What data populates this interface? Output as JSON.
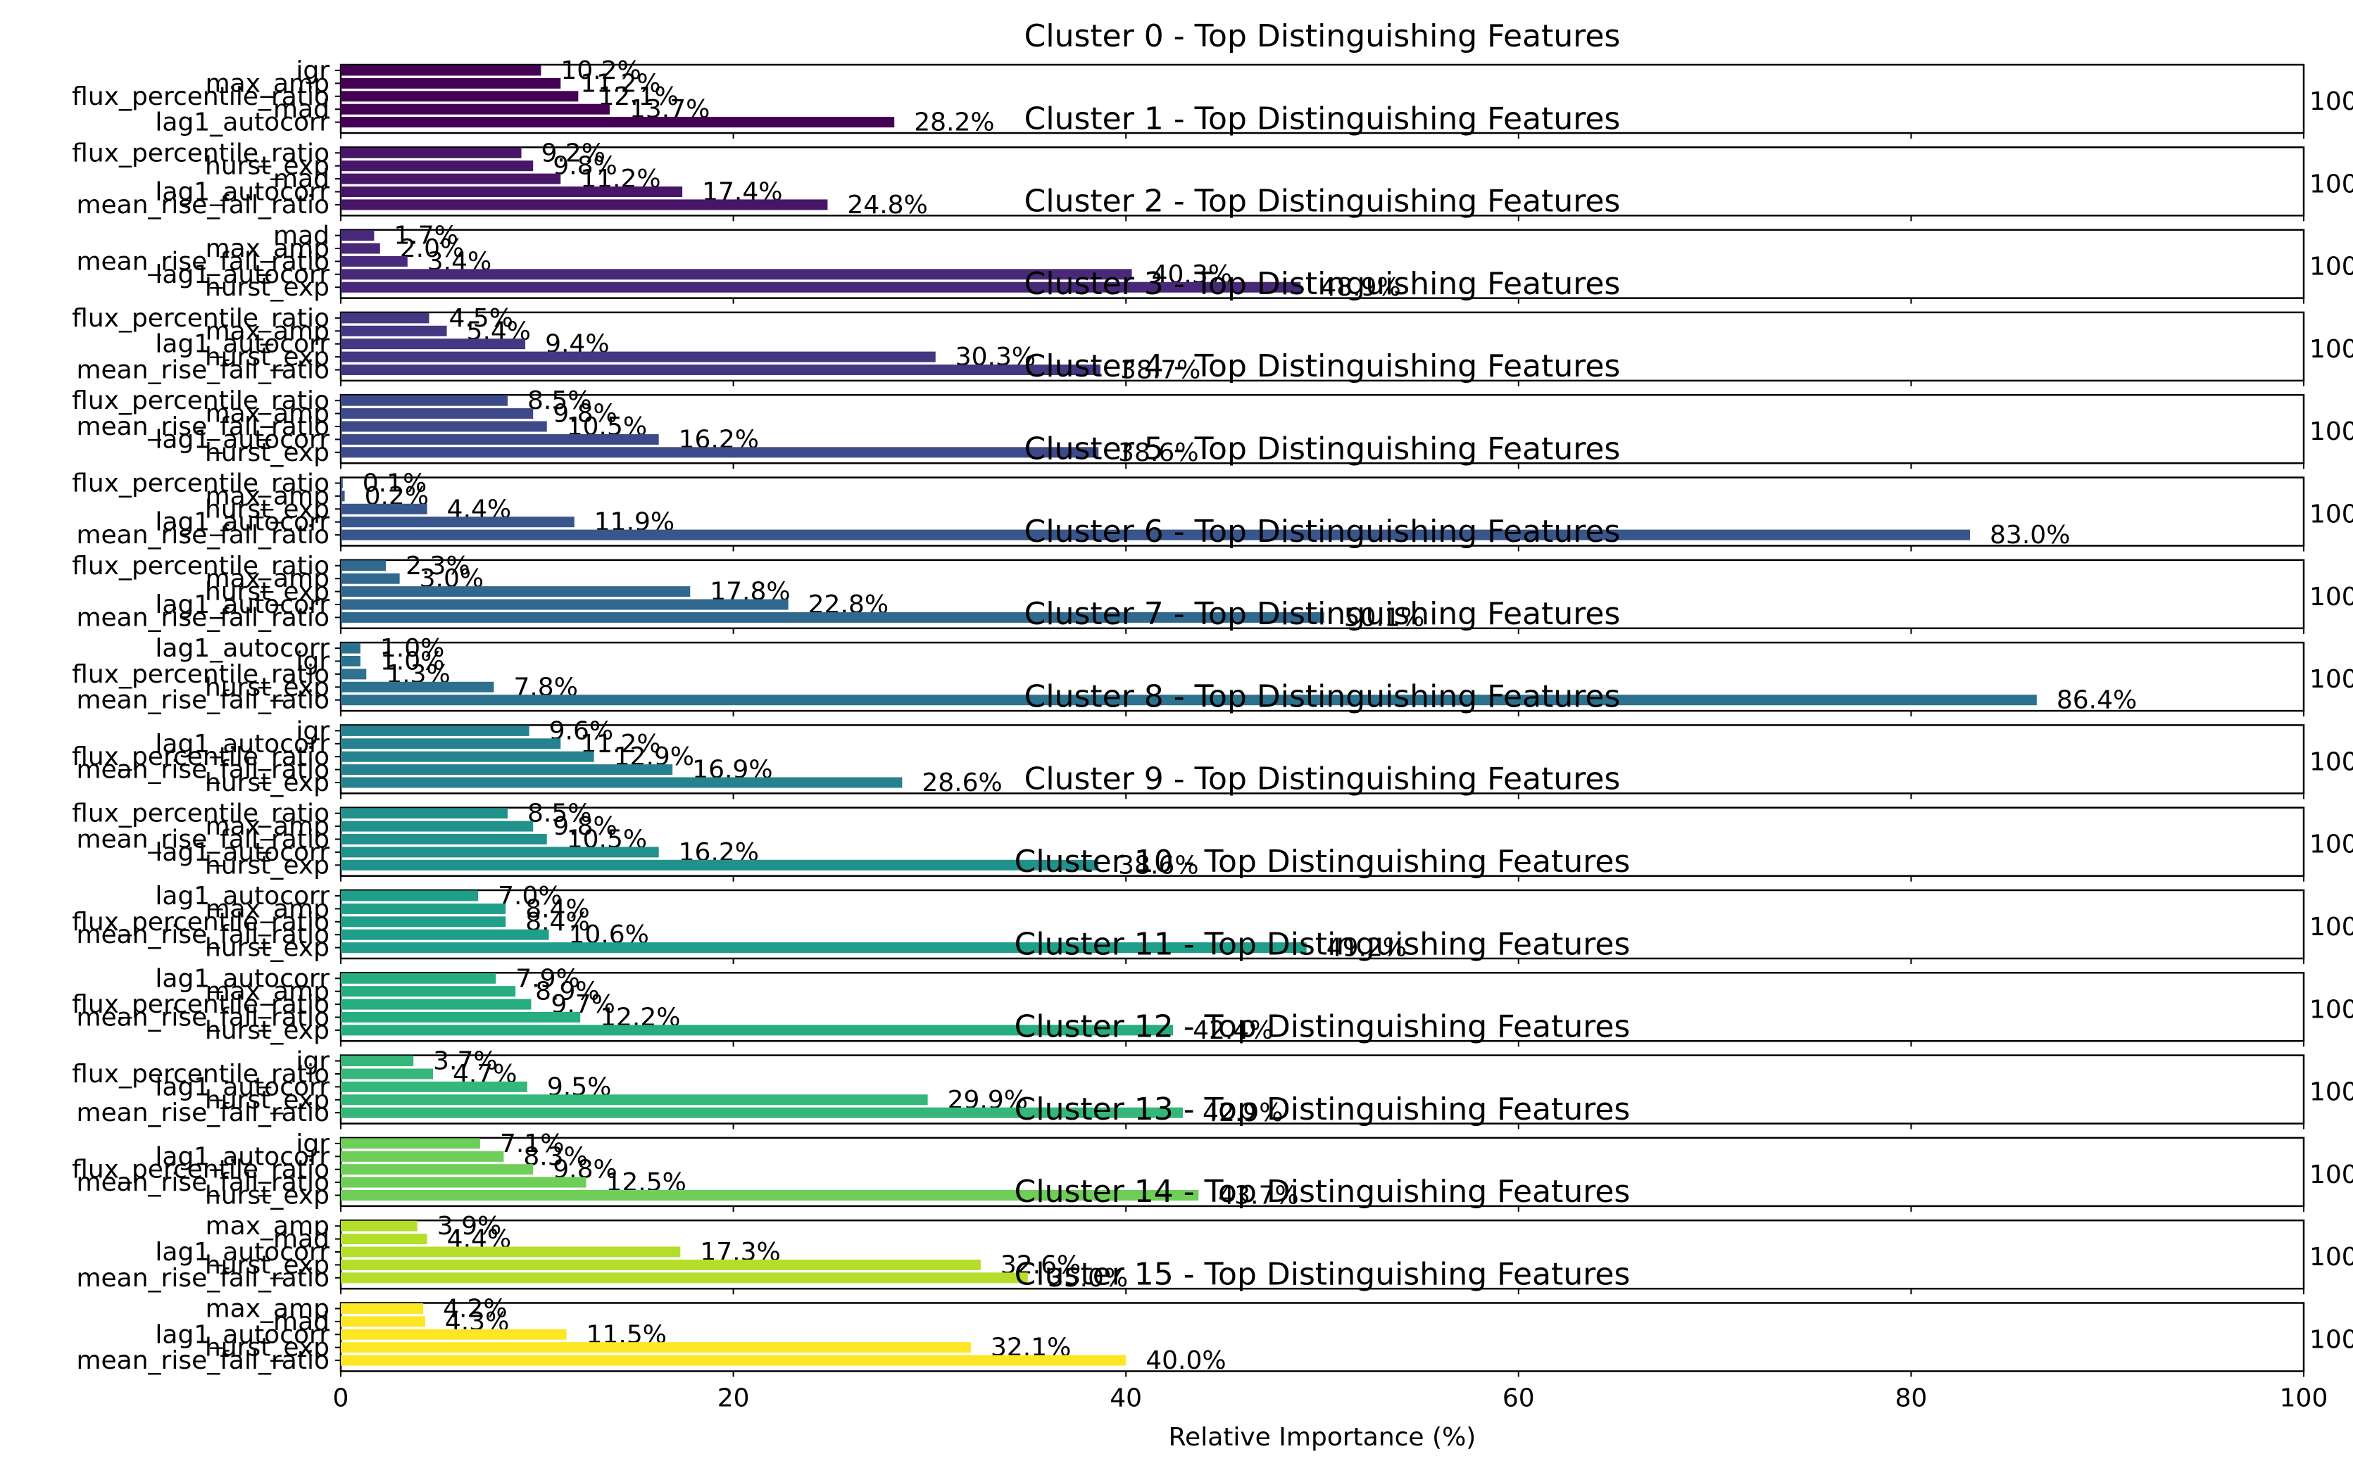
{
  "chart_data": {
    "type": "bar",
    "orientation": "horizontal",
    "xlabel": "Relative Importance (%)",
    "xlim": [
      0,
      100
    ],
    "xticks": [
      "0",
      "20",
      "40",
      "60",
      "80",
      "100"
    ],
    "colormap": "viridis",
    "panels": [
      {
        "title": "Cluster 0 - Top Distinguishing Features",
        "color": "#440154",
        "features": [
          "igr",
          "max_amp",
          "flux_percentile_ratio",
          "mad",
          "lag1_autocorr"
        ],
        "values": [
          10.2,
          11.2,
          12.1,
          13.7,
          28.2
        ],
        "labels": [
          "10.2%",
          "11.2%",
          "12.1%",
          "13.7%",
          "28.2%"
        ]
      },
      {
        "title": "Cluster 1 - Top Distinguishing Features",
        "color": "#481668",
        "features": [
          "flux_percentile_ratio",
          "hurst_exp",
          "mad",
          "lag1_autocorr",
          "mean_rise_fall_ratio"
        ],
        "values": [
          9.2,
          9.8,
          11.2,
          17.4,
          24.8
        ],
        "labels": [
          "9.2%",
          "9.8%",
          "11.2%",
          "17.4%",
          "24.8%"
        ]
      },
      {
        "title": "Cluster 2 - Top Distinguishing Features",
        "color": "#482878",
        "features": [
          "mad",
          "max_amp",
          "mean_rise_fall_ratio",
          "lag1_autocorr",
          "hurst_exp"
        ],
        "values": [
          1.7,
          2.0,
          3.4,
          40.3,
          48.9
        ],
        "labels": [
          "1.7%",
          "2.0%",
          "3.4%",
          "40.3%",
          "48.9%"
        ]
      },
      {
        "title": "Cluster 3 - Top Distinguishing Features",
        "color": "#453781",
        "features": [
          "flux_percentile_ratio",
          "max_amp",
          "lag1_autocorr",
          "hurst_exp",
          "mean_rise_fall_ratio"
        ],
        "values": [
          4.5,
          5.4,
          9.4,
          30.3,
          38.7
        ],
        "labels": [
          "4.5%",
          "5.4%",
          "9.4%",
          "30.3%",
          "38.7%"
        ]
      },
      {
        "title": "Cluster 4 - Top Distinguishing Features",
        "color": "#3e4989",
        "features": [
          "flux_percentile_ratio",
          "max_amp",
          "mean_rise_fall_ratio",
          "lag1_autocorr",
          "hurst_exp"
        ],
        "values": [
          8.5,
          9.8,
          10.5,
          16.2,
          38.6
        ],
        "labels": [
          "8.5%",
          "9.8%",
          "10.5%",
          "16.2%",
          "38.6%"
        ]
      },
      {
        "title": "Cluster 5 - Top Distinguishing Features",
        "color": "#39568c",
        "features": [
          "flux_percentile_ratio",
          "max_amp",
          "hurst_exp",
          "lag1_autocorr",
          "mean_rise_fall_ratio"
        ],
        "values": [
          0.1,
          0.2,
          4.4,
          11.9,
          83.0
        ],
        "labels": [
          "0.1%",
          "0.2%",
          "4.4%",
          "11.9%",
          "83.0%"
        ]
      },
      {
        "title": "Cluster 6 - Top Distinguishing Features",
        "color": "#31688e",
        "features": [
          "flux_percentile_ratio",
          "max_amp",
          "hurst_exp",
          "lag1_autocorr",
          "mean_rise_fall_ratio"
        ],
        "values": [
          2.3,
          3.0,
          17.8,
          22.8,
          50.1
        ],
        "labels": [
          "2.3%",
          "3.0%",
          "17.8%",
          "22.8%",
          "50.1%"
        ]
      },
      {
        "title": "Cluster 7 - Top Distinguishing Features",
        "color": "#2c728e",
        "features": [
          "lag1_autocorr",
          "igr",
          "flux_percentile_ratio",
          "hurst_exp",
          "mean_rise_fall_ratio"
        ],
        "values": [
          1.0,
          1.0,
          1.3,
          7.8,
          86.4
        ],
        "labels": [
          "1.0%",
          "1.0%",
          "1.3%",
          "7.8%",
          "86.4%"
        ]
      },
      {
        "title": "Cluster 8 - Top Distinguishing Features",
        "color": "#26828e",
        "features": [
          "igr",
          "lag1_autocorr",
          "flux_percentile_ratio",
          "mean_rise_fall_ratio",
          "hurst_exp"
        ],
        "values": [
          9.6,
          11.2,
          12.9,
          16.9,
          28.6
        ],
        "labels": [
          "9.6%",
          "11.2%",
          "12.9%",
          "16.9%",
          "28.6%"
        ]
      },
      {
        "title": "Cluster 9 - Top Distinguishing Features",
        "color": "#21918c",
        "features": [
          "flux_percentile_ratio",
          "max_amp",
          "mean_rise_fall_ratio",
          "lag1_autocorr",
          "hurst_exp"
        ],
        "values": [
          8.5,
          9.8,
          10.5,
          16.2,
          38.6
        ],
        "labels": [
          "8.5%",
          "9.8%",
          "10.5%",
          "16.2%",
          "38.6%"
        ]
      },
      {
        "title": "Cluster 10 - Top Distinguishing Features",
        "color": "#1f9e89",
        "features": [
          "lag1_autocorr",
          "max_amp",
          "flux_percentile_ratio",
          "mean_rise_fall_ratio",
          "hurst_exp"
        ],
        "values": [
          7.0,
          8.4,
          8.4,
          10.6,
          49.2
        ],
        "labels": [
          "7.0%",
          "8.4%",
          "8.4%",
          "10.6%",
          "49.2%"
        ]
      },
      {
        "title": "Cluster 11 - Top Distinguishing Features",
        "color": "#26ad81",
        "features": [
          "lag1_autocorr",
          "max_amp",
          "flux_percentile_ratio",
          "mean_rise_fall_ratio",
          "hurst_exp"
        ],
        "values": [
          7.9,
          8.9,
          9.7,
          12.2,
          42.4
        ],
        "labels": [
          "7.9%",
          "8.9%",
          "9.7%",
          "12.2%",
          "42.4%"
        ]
      },
      {
        "title": "Cluster 12 - Top Distinguishing Features",
        "color": "#35b779",
        "features": [
          "igr",
          "flux_percentile_ratio",
          "lag1_autocorr",
          "hurst_exp",
          "mean_rise_fall_ratio"
        ],
        "values": [
          3.7,
          4.7,
          9.5,
          29.9,
          42.9
        ],
        "labels": [
          "3.7%",
          "4.7%",
          "9.5%",
          "29.9%",
          "42.9%"
        ]
      },
      {
        "title": "Cluster 13 - Top Distinguishing Features",
        "color": "#6ece58",
        "features": [
          "igr",
          "lag1_autocorr",
          "flux_percentile_ratio",
          "mean_rise_fall_ratio",
          "hurst_exp"
        ],
        "values": [
          7.1,
          8.3,
          9.8,
          12.5,
          43.7
        ],
        "labels": [
          "7.1%",
          "8.3%",
          "9.8%",
          "12.5%",
          "43.7%"
        ]
      },
      {
        "title": "Cluster 14 - Top Distinguishing Features",
        "color": "#b5de2b",
        "features": [
          "max_amp",
          "mad",
          "lag1_autocorr",
          "hurst_exp",
          "mean_rise_fall_ratio"
        ],
        "values": [
          3.9,
          4.4,
          17.3,
          32.6,
          35.0
        ],
        "labels": [
          "3.9%",
          "4.4%",
          "17.3%",
          "32.6%",
          "35.0%"
        ]
      },
      {
        "title": "Cluster 15 - Top Distinguishing Features",
        "color": "#fde725",
        "features": [
          "max_amp",
          "mad",
          "lag1_autocorr",
          "hurst_exp",
          "mean_rise_fall_ratio"
        ],
        "values": [
          4.2,
          4.3,
          11.5,
          32.1,
          40.0
        ],
        "labels": [
          "4.2%",
          "4.3%",
          "11.5%",
          "32.1%",
          "40.0%"
        ]
      }
    ]
  }
}
